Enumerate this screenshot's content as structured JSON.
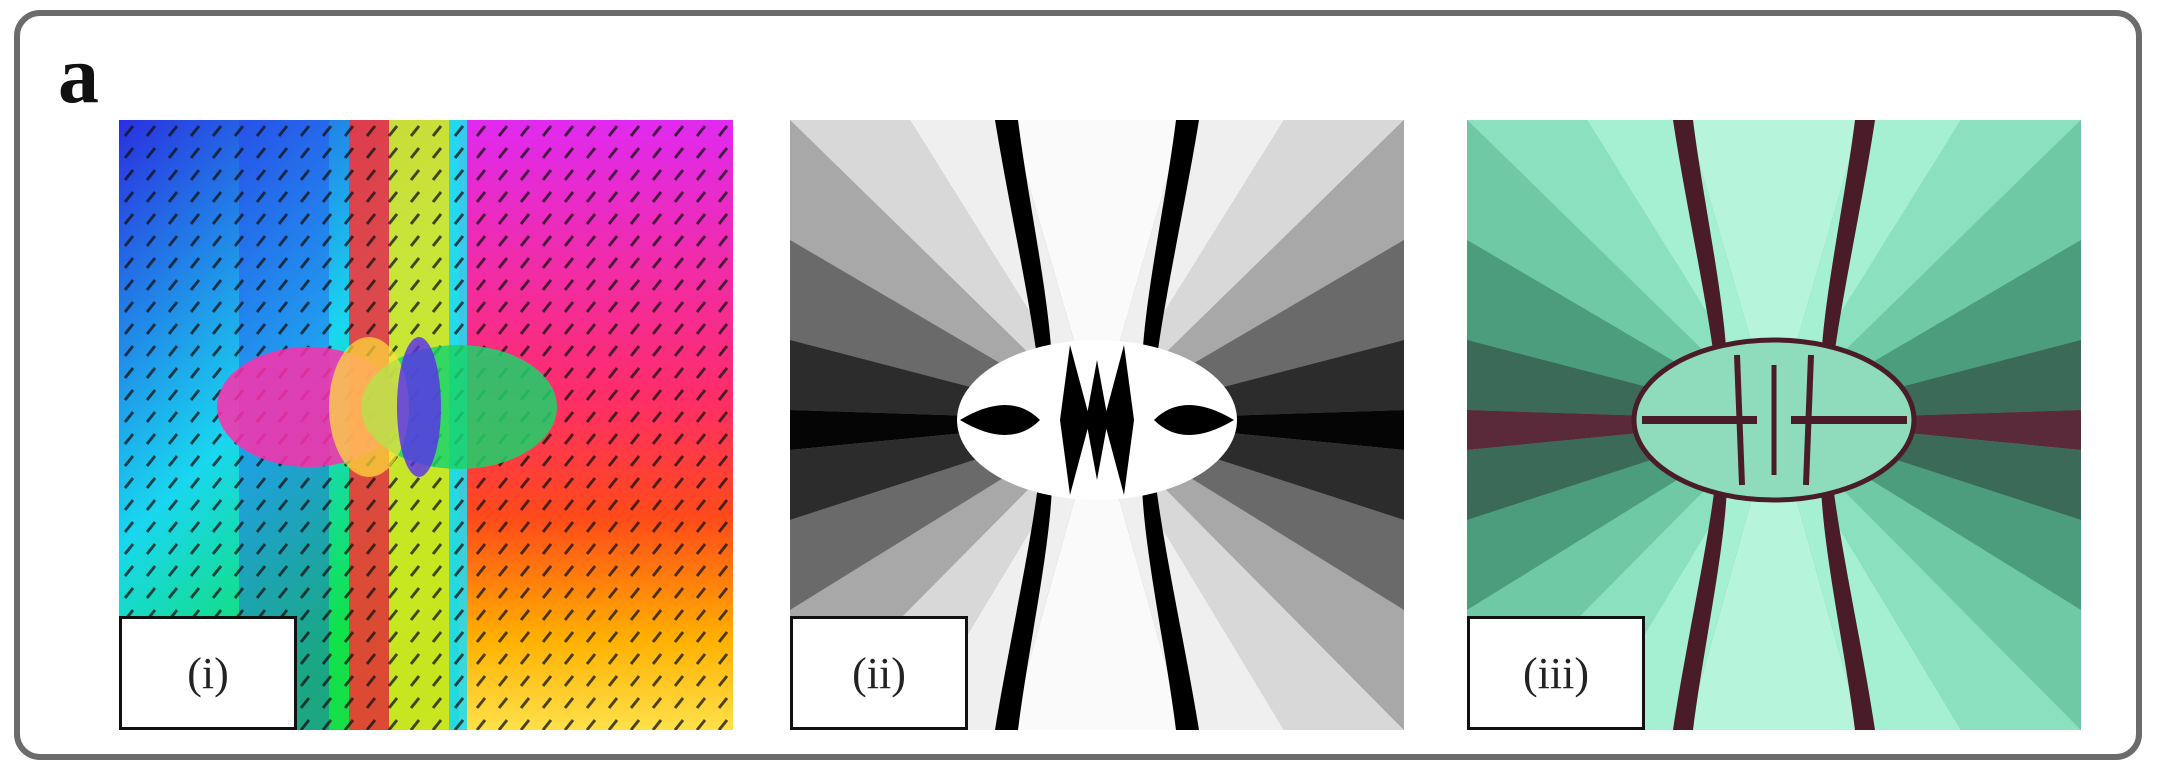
{
  "figure": {
    "panel_letter": "a",
    "subpanels": [
      {
        "label": "(i)"
      },
      {
        "label": "(ii)"
      },
      {
        "label": "(iii)"
      }
    ]
  }
}
